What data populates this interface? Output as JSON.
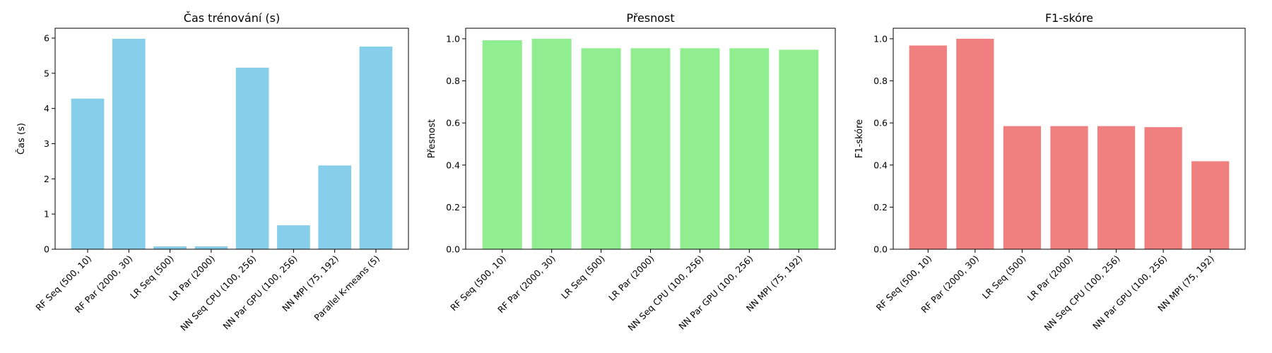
{
  "chart_data": [
    {
      "type": "bar",
      "title": "Čas trénování (s)",
      "xlabel": "",
      "ylabel": "Čas (s)",
      "categories": [
        "RF Seq (500, 10)",
        "RF Par (2000, 30)",
        "LR Seq (500)",
        "LR Par (2000)",
        "NN Seq CPU (100, 256)",
        "NN Par GPU (100, 256)",
        "NN MPI (75, 192)",
        "Parallel K-means (5)"
      ],
      "values": [
        4.28,
        5.98,
        0.08,
        0.08,
        5.16,
        0.68,
        2.38,
        5.76
      ],
      "ylim": [
        0,
        6.28
      ],
      "yticks": [
        0,
        1,
        2,
        3,
        4,
        5,
        6
      ],
      "ytick_labels": [
        "0",
        "1",
        "2",
        "3",
        "4",
        "5",
        "6"
      ],
      "color": "#87CEEB",
      "grid": false,
      "legend": "none"
    },
    {
      "type": "bar",
      "title": "Přesnost",
      "xlabel": "",
      "ylabel": "Přesnost",
      "categories": [
        "RF Seq (500, 10)",
        "RF Par (2000, 30)",
        "LR Seq (500)",
        "LR Par (2000)",
        "NN Seq CPU (100, 256)",
        "NN Par GPU (100, 256)",
        "NN MPI (75, 192)"
      ],
      "values": [
        0.993,
        1.0,
        0.955,
        0.955,
        0.955,
        0.955,
        0.948
      ],
      "ylim": [
        0,
        1.05
      ],
      "yticks": [
        0,
        0.2,
        0.4,
        0.6,
        0.8,
        1.0
      ],
      "ytick_labels": [
        "0.0",
        "0.2",
        "0.4",
        "0.6",
        "0.8",
        "1.0"
      ],
      "color": "#90EE90",
      "grid": false,
      "legend": "none"
    },
    {
      "type": "bar",
      "title": "F1-skóre",
      "xlabel": "",
      "ylabel": "F1-skóre",
      "categories": [
        "RF Seq (500, 10)",
        "RF Par (2000, 30)",
        "LR Seq (500)",
        "LR Par (2000)",
        "NN Seq CPU (100, 256)",
        "NN Par GPU (100, 256)",
        "NN MPI (75, 192)"
      ],
      "values": [
        0.968,
        1.0,
        0.585,
        0.585,
        0.585,
        0.58,
        0.418
      ],
      "ylim": [
        0,
        1.05
      ],
      "yticks": [
        0,
        0.2,
        0.4,
        0.6,
        0.8,
        1.0
      ],
      "ytick_labels": [
        "0.0",
        "0.2",
        "0.4",
        "0.6",
        "0.8",
        "1.0"
      ],
      "color": "#F08080",
      "grid": false,
      "legend": "none"
    }
  ]
}
